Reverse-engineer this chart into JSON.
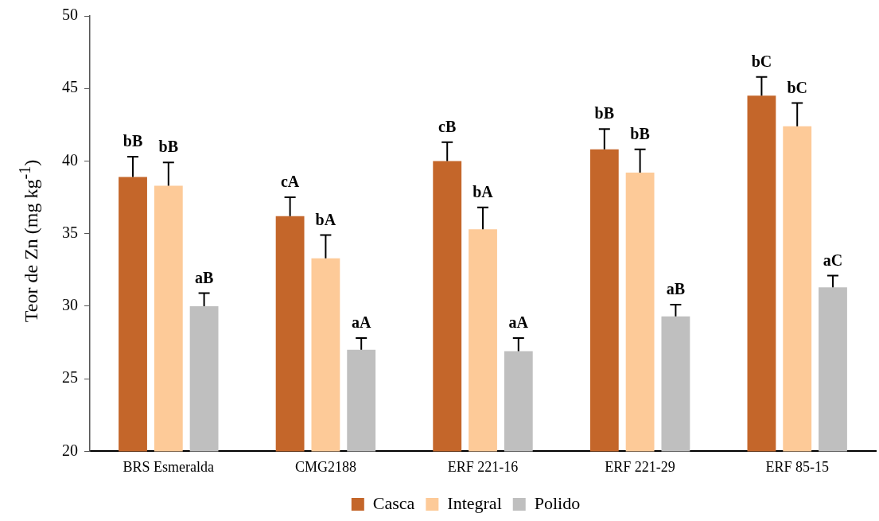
{
  "chart_data": {
    "type": "bar",
    "ylabel": "Teor de Zn (mg kg$^{-1}$)",
    "categories": [
      "BRS Esmeralda",
      "CMG2188",
      "ERF 221-16",
      "ERF 221-29",
      "ERF 85-15"
    ],
    "ylim": [
      20,
      50
    ],
    "yticks": [
      20,
      25,
      30,
      35,
      40,
      45,
      50
    ],
    "legend": "bottom",
    "series": [
      {
        "name": "Casca",
        "color": "#c4662a",
        "values": [
          38.9,
          36.2,
          40.0,
          40.8,
          44.5
        ],
        "errors": [
          [
            38.9,
            40.3
          ],
          [
            36.2,
            37.5
          ],
          [
            40.0,
            41.3
          ],
          [
            40.8,
            42.2
          ],
          [
            44.5,
            45.8
          ]
        ],
        "value_labels": [
          "bB",
          "cA",
          "cB",
          "bB",
          "bC"
        ]
      },
      {
        "name": "Integral",
        "color": "#fdca98",
        "values": [
          38.3,
          33.3,
          35.3,
          39.2,
          42.4
        ],
        "errors": [
          [
            38.3,
            39.9
          ],
          [
            33.3,
            34.9
          ],
          [
            35.3,
            36.8
          ],
          [
            39.2,
            40.8
          ],
          [
            42.4,
            44.0
          ]
        ],
        "value_labels": [
          "bB",
          "bA",
          "bA",
          "bB",
          "bC"
        ]
      },
      {
        "name": "Polido",
        "color": "#bfbfbf",
        "values": [
          30.0,
          27.0,
          26.9,
          29.3,
          31.3
        ],
        "errors": [
          [
            30.0,
            30.9
          ],
          [
            27.0,
            27.8
          ],
          [
            26.9,
            27.8
          ],
          [
            29.3,
            30.1
          ],
          [
            31.3,
            32.1
          ]
        ],
        "value_labels": [
          "aB",
          "aA",
          "aA",
          "aB",
          "aC"
        ]
      }
    ]
  }
}
